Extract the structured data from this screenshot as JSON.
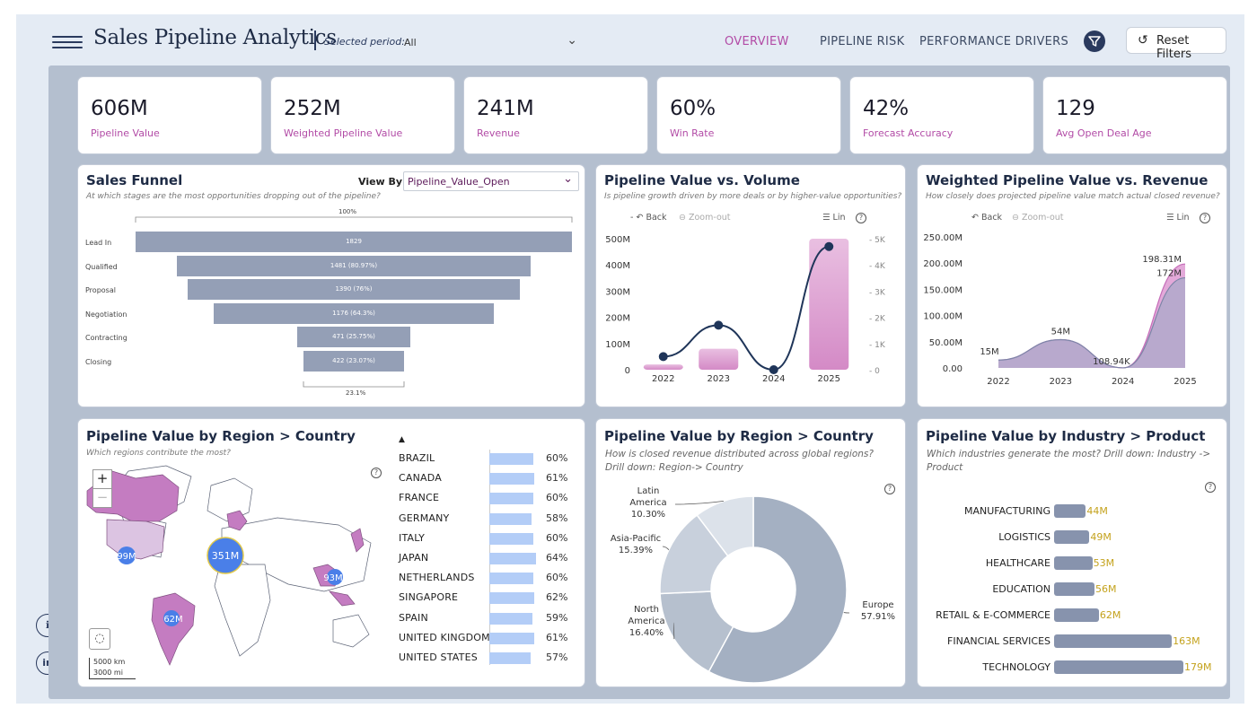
{
  "header": {
    "title": "Sales Pipeline Analytics",
    "period_label": "Selected period:",
    "period_value": "All",
    "tabs": [
      "OVERVIEW",
      "PIPELINE RISK",
      "PERFORMANCE DRIVERS"
    ],
    "reset_label": "Reset Filters"
  },
  "kpis": [
    {
      "value": "606M",
      "label": "Pipeline Value"
    },
    {
      "value": "252M",
      "label": "Weighted Pipeline Value"
    },
    {
      "value": "241M",
      "label": "Revenue"
    },
    {
      "value": "60%",
      "label": "Win Rate"
    },
    {
      "value": "42%",
      "label": "Forecast Accuracy"
    },
    {
      "value": "129",
      "label": "Avg Open Deal Age"
    }
  ],
  "funnel": {
    "title": "Sales Funnel",
    "subtitle": "At which stages are the most opportunities dropping out of the pipeline?",
    "view_by_label": "View By:",
    "view_by_value": "Pipeline_Value_Open",
    "top_pct": "100%",
    "bottom_pct": "23.1%",
    "stages": [
      {
        "label": "Lead In",
        "text": "1829",
        "value": 1829
      },
      {
        "label": "Qualified",
        "text": "1481 (80.97%)",
        "value": 1481
      },
      {
        "label": "Proposal",
        "text": "1390 (76%)",
        "value": 1390
      },
      {
        "label": "Negotiation",
        "text": "1176 (64.3%)",
        "value": 1176
      },
      {
        "label": "Contracting",
        "text": "471 (25.75%)",
        "value": 471
      },
      {
        "label": "Closing",
        "text": "422 (23.07%)",
        "value": 422
      }
    ]
  },
  "pvv": {
    "title": "Pipeline Value vs. Volume",
    "subtitle": "Is pipeline growth driven by more deals or by higher-value opportunities?",
    "back": "Back",
    "zoom_out": "Zoom-out",
    "lin": "Lin",
    "help": "?"
  },
  "wpv": {
    "title": "Weighted Pipeline Value vs. Revenue",
    "subtitle": "How closely does projected pipeline value match actual closed revenue?",
    "back": "Back",
    "zoom_out": "Zoom-out",
    "lin": "Lin",
    "help": "?"
  },
  "map": {
    "title": "Pipeline Value by Region > Country",
    "subtitle": "Which regions contribute the most?",
    "help": "?",
    "zoom_in": "+",
    "zoom_out": "−",
    "bubbles": [
      "351M",
      "99M",
      "62M",
      "93M"
    ],
    "scale_km": "5000 km",
    "scale_mi": "3000 mi",
    "sort_icon": "▲",
    "countries": [
      {
        "name": "BRAZIL",
        "pct": "60%",
        "value": 60
      },
      {
        "name": "CANADA",
        "pct": "61%",
        "value": 61
      },
      {
        "name": "FRANCE",
        "pct": "60%",
        "value": 60
      },
      {
        "name": "GERMANY",
        "pct": "58%",
        "value": 58
      },
      {
        "name": "ITALY",
        "pct": "60%",
        "value": 60
      },
      {
        "name": "JAPAN",
        "pct": "64%",
        "value": 64
      },
      {
        "name": "NETHERLANDS",
        "pct": "60%",
        "value": 60
      },
      {
        "name": "SINGAPORE",
        "pct": "62%",
        "value": 62
      },
      {
        "name": "SPAIN",
        "pct": "59%",
        "value": 59
      },
      {
        "name": "UNITED KINGDOM",
        "pct": "61%",
        "value": 61
      },
      {
        "name": "UNITED STATES",
        "pct": "57%",
        "value": 57
      }
    ]
  },
  "donut": {
    "title": "Pipeline Value by Region > Country",
    "subtitle": "How is closed revenue distributed across global regions? Drill down: Region-> Country",
    "help": "?"
  },
  "industry": {
    "title": "Pipeline Value by Industry > Product",
    "subtitle": "Which industries generate the most? Drill down: Industry -> Product",
    "help": "?",
    "items": [
      {
        "label": "MANUFACTURING",
        "text": "44M",
        "value": 44
      },
      {
        "label": "LOGISTICS",
        "text": "49M",
        "value": 49
      },
      {
        "label": "HEALTHCARE",
        "text": "53M",
        "value": 53
      },
      {
        "label": "EDUCATION",
        "text": "56M",
        "value": 56
      },
      {
        "label": "RETAIL & E-COMMERCE",
        "text": "62M",
        "value": 62
      },
      {
        "label": "FINANCIAL SERVICES",
        "text": "163M",
        "value": 163
      },
      {
        "label": "TECHNOLOGY",
        "text": "179M",
        "value": 179
      }
    ]
  },
  "chart_data": [
    {
      "type": "bar",
      "title": "Pipeline Value vs. Volume",
      "categories": [
        "2022",
        "2023",
        "2024",
        "2025"
      ],
      "series": [
        {
          "values": [
            20,
            80,
            0,
            500
          ],
          "axis": "left"
        },
        {
          "values": [
            500,
            1700,
            0,
            4700
          ],
          "axis": "right",
          "render": "line"
        }
      ],
      "left_ticks": [
        "0",
        "100M",
        "200M",
        "300M",
        "400M",
        "500M"
      ],
      "right_ticks": [
        "0",
        "1K",
        "2K",
        "3K",
        "4K",
        "5K"
      ],
      "ylim": [
        0,
        500
      ],
      "ylim_right": [
        0,
        5000
      ],
      "grid": false
    },
    {
      "type": "area",
      "title": "Weighted Pipeline Value vs. Revenue",
      "categories": [
        "2022",
        "2023",
        "2024",
        "2025"
      ],
      "series": [
        {
          "values": [
            15,
            54,
            0.10894,
            198.31
          ],
          "color": "#d98ccc"
        },
        {
          "values": [
            15,
            54,
            0.10894,
            172
          ],
          "color": "#a9a9c8"
        }
      ],
      "data_labels": [
        "15M",
        "54M",
        "108.94K",
        "198.31M",
        "172M"
      ],
      "y_ticks": [
        "0.00",
        "50.00M",
        "100.00M",
        "150.00M",
        "200.00M",
        "250.00M"
      ],
      "ylim": [
        0,
        250
      ],
      "grid": false
    },
    {
      "type": "pie",
      "title": "Pipeline Value by Region > Country",
      "labels": [
        "Europe",
        "North America",
        "Asia-Pacific",
        "Latin America"
      ],
      "label_lines": [
        [
          "Europe",
          "57.91%"
        ],
        [
          "North",
          "America",
          "16.40%"
        ],
        [
          "Asia-Pacific",
          "15.39%"
        ],
        [
          "Latin",
          "America",
          "10.30%"
        ]
      ],
      "values": [
        57.91,
        16.4,
        15.39,
        10.3
      ],
      "colors": [
        "#a4b0c2",
        "#b6c0ce",
        "#c8d0dc",
        "#dce2ea"
      ]
    }
  ]
}
